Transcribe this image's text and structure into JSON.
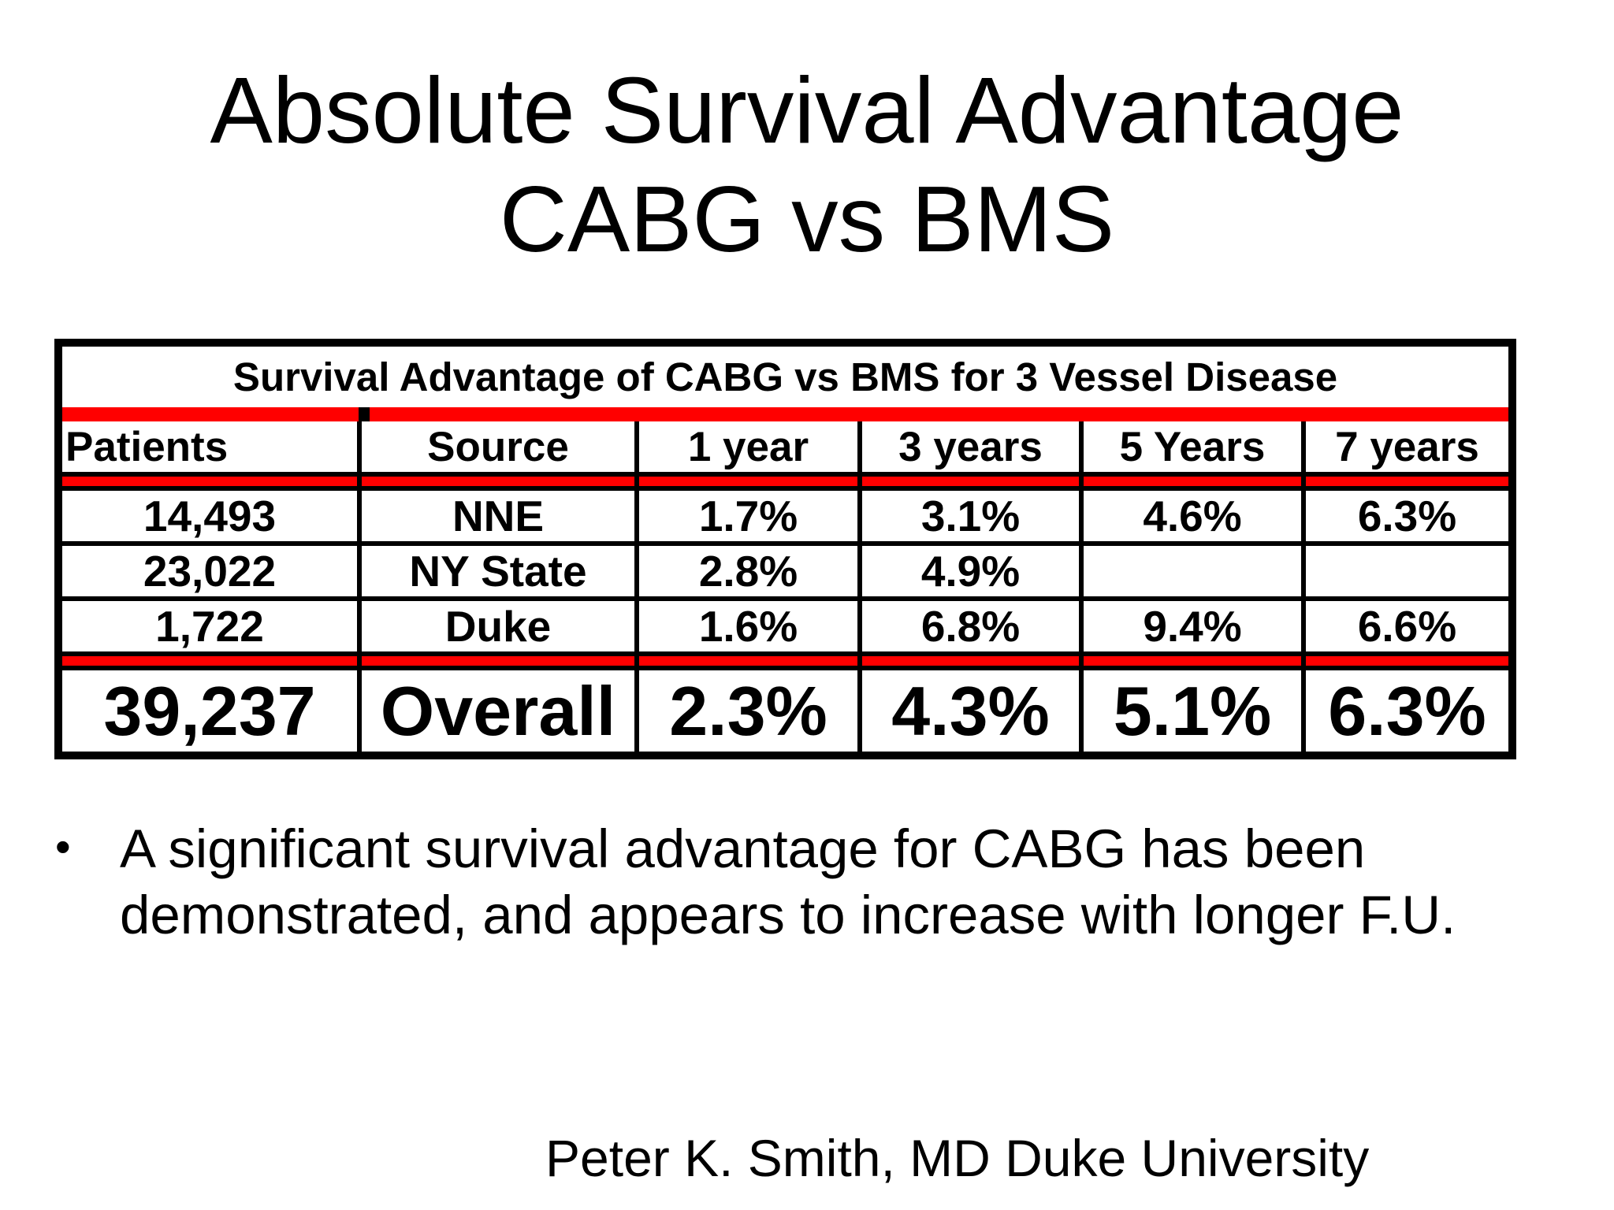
{
  "title": {
    "line1": "Absolute Survival Advantage",
    "line2": "CABG vs BMS"
  },
  "table": {
    "caption": "Survival Advantage of CABG vs BMS for 3 Vessel Disease",
    "headers": [
      "Patients",
      "Source",
      "1 year",
      "3 years",
      "5 Years",
      "7 years"
    ],
    "rows": [
      [
        "14,493",
        "NNE",
        "1.7%",
        "3.1%",
        "4.6%",
        "6.3%"
      ],
      [
        "23,022",
        "NY State",
        "2.8%",
        "4.9%",
        "",
        ""
      ],
      [
        "1,722",
        "Duke",
        "1.6%",
        "6.8%",
        "9.4%",
        "6.6%"
      ]
    ],
    "total": [
      "39,237",
      "Overall",
      "2.3%",
      "4.3%",
      "5.1%",
      "6.3%"
    ],
    "accent_color": "#ff0000"
  },
  "bullet": {
    "text": "A significant survival advantage for CABG has been demonstrated, and appears to increase with longer F.U."
  },
  "credit": "Peter K. Smith, MD Duke University"
}
